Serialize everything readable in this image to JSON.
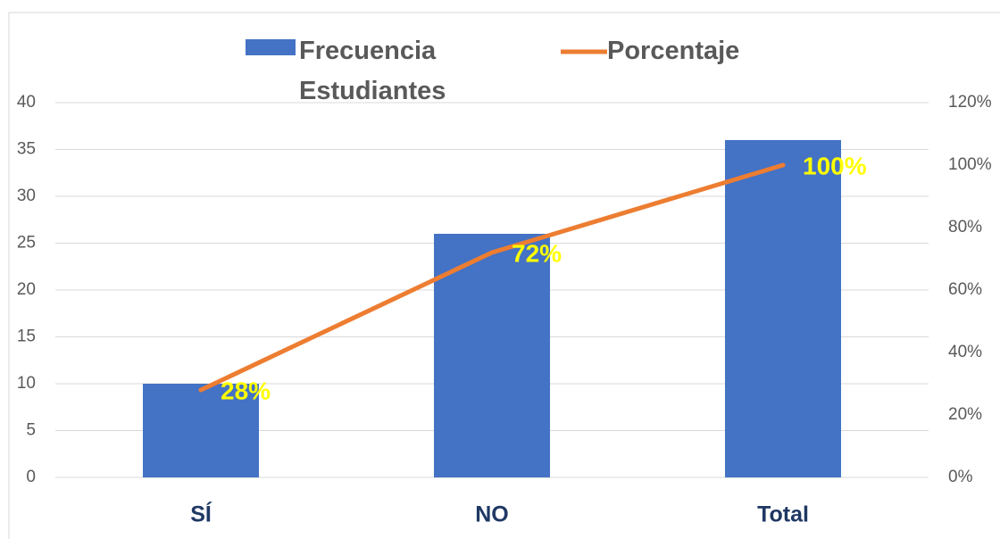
{
  "chart_data": {
    "type": "bar",
    "categories": [
      "SÍ",
      "NO",
      "Total"
    ],
    "series": [
      {
        "name": "Frecuencia Estudiantes",
        "type": "bar",
        "color": "#4472c4",
        "values": [
          10,
          26,
          36
        ]
      },
      {
        "name": "Porcentaje",
        "type": "line",
        "axis": "y2",
        "color": "#ed7d31",
        "values": [
          28,
          72,
          100
        ],
        "value_labels": [
          "28%",
          "72%",
          "100%"
        ]
      }
    ],
    "ylim": [
      0,
      40
    ],
    "yticks": [
      0,
      5,
      10,
      15,
      20,
      25,
      30,
      35,
      40
    ],
    "y2lim": [
      0,
      120
    ],
    "y2ticks": [
      {
        "value": 0,
        "label": "0%"
      },
      {
        "value": 20,
        "label": "20%"
      },
      {
        "value": 40,
        "label": "40%"
      },
      {
        "value": 60,
        "label": "60%"
      },
      {
        "value": 80,
        "label": "80%"
      },
      {
        "value": 100,
        "label": "100%"
      },
      {
        "value": 120,
        "label": "120%"
      }
    ],
    "grid": true,
    "legend": "top",
    "label_color": "#ffff00"
  }
}
